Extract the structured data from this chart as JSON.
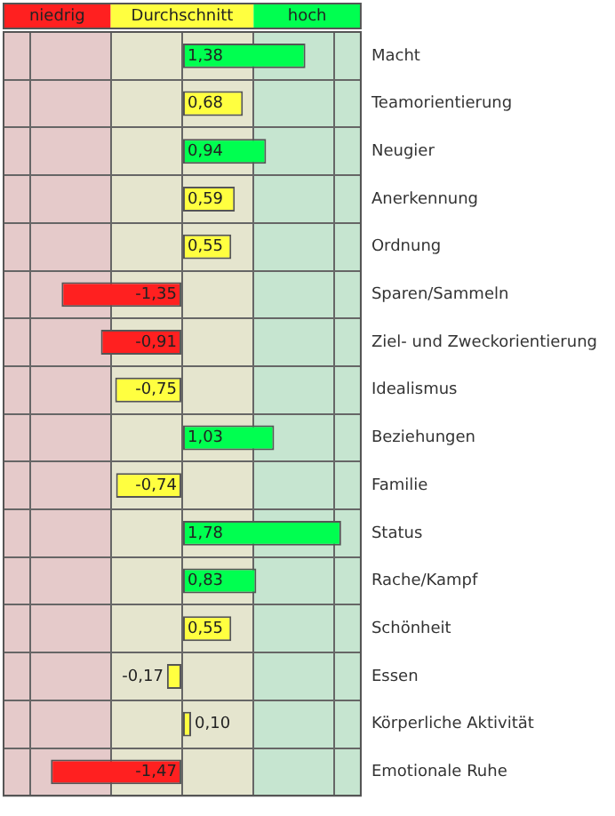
{
  "chart_data": {
    "type": "bar",
    "orientation": "horizontal",
    "categories": [
      "Macht",
      "Teamorientierung",
      "Neugier",
      "Anerkennung",
      "Ordnung",
      "Sparen/Sammeln",
      "Ziel- und Zweckorientierung",
      "Idealismus",
      "Beziehungen",
      "Familie",
      "Status",
      "Rache/Kampf",
      "Schönheit",
      "Essen",
      "Körperliche Aktivität",
      "Emotionale Ruhe"
    ],
    "values": [
      1.38,
      0.68,
      0.94,
      0.59,
      0.55,
      -1.35,
      -0.91,
      -0.75,
      1.03,
      -0.74,
      1.78,
      0.83,
      0.55,
      -0.17,
      0.1,
      -1.47
    ],
    "colors": [
      "#00ff50",
      "#ffff40",
      "#00ff50",
      "#ffff40",
      "#ffff40",
      "#ff2020",
      "#ff2020",
      "#ffff40",
      "#00ff50",
      "#ffff40",
      "#00ff50",
      "#00ff50",
      "#ffff40",
      "#ffff40",
      "#ffff40",
      "#ff2020"
    ],
    "value_labels": [
      "1,38",
      "0,68",
      "0,94",
      "0,59",
      "0,55",
      "-1,35",
      "-0,91",
      "-0,75",
      "1,03",
      "-0,74",
      "1,78",
      "0,83",
      "0,55",
      "-0,17",
      "0,10",
      "-1,47"
    ],
    "xlim": [
      -2,
      2
    ],
    "xticks": [
      {
        "value": -1.7,
        "label": null
      },
      {
        "value": -0.8,
        "label": null
      },
      {
        "value": 0,
        "label": null
      },
      {
        "value": 0.8,
        "label": null
      },
      {
        "value": 1.7,
        "label": null
      }
    ],
    "bands": [
      {
        "axis": "x",
        "from": -2,
        "to": -0.8,
        "label": "niedrig",
        "color": "#ff2020"
      },
      {
        "axis": "x",
        "from": -0.8,
        "to": 0.8,
        "label": "Durchschnitt",
        "color": "#ffff40"
      },
      {
        "axis": "x",
        "from": 0.8,
        "to": 2,
        "label": "hoch",
        "color": "#00ff50"
      }
    ],
    "grid": true,
    "tick_labels": "y",
    "legend": false
  }
}
